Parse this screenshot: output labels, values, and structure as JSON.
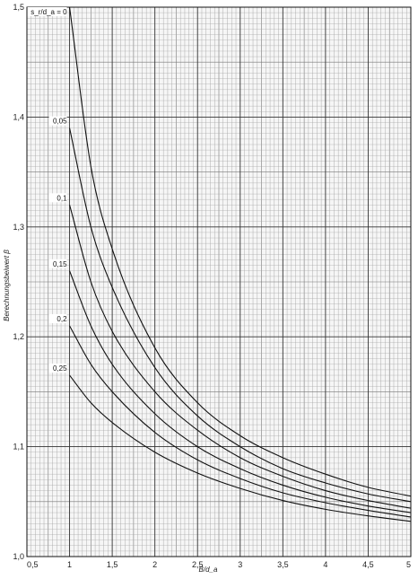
{
  "chart_data": {
    "type": "line",
    "title": "",
    "xlabel": "B/d_a",
    "ylabel": "Berechnungsbeiwert β",
    "xlim": [
      0.5,
      5
    ],
    "ylim": [
      1.0,
      1.5
    ],
    "x_ticks": [
      "0,5",
      "1",
      "1,5",
      "2",
      "2,5",
      "3",
      "3,5",
      "4",
      "4,5",
      "5"
    ],
    "y_ticks": [
      "1,0",
      "1,1",
      "1,2",
      "1,3",
      "1,4",
      "1,5"
    ],
    "grid": true,
    "legend": "none",
    "series": [
      {
        "name": "s_r/d_a = 0",
        "x": [
          1.0,
          1.25,
          1.5,
          2.0,
          2.5,
          3.0,
          3.5,
          4.0,
          4.5,
          5.0
        ],
        "y": [
          1.5,
          1.355,
          1.28,
          1.19,
          1.14,
          1.11,
          1.09,
          1.075,
          1.063,
          1.055
        ]
      },
      {
        "name": "0,05",
        "x": [
          1.0,
          1.25,
          1.5,
          2.0,
          2.5,
          3.0,
          3.5,
          4.0,
          4.5,
          5.0
        ],
        "y": [
          1.39,
          1.3,
          1.245,
          1.172,
          1.128,
          1.1,
          1.08,
          1.067,
          1.057,
          1.05
        ]
      },
      {
        "name": "0,1",
        "x": [
          1.0,
          1.25,
          1.5,
          2.0,
          2.5,
          3.0,
          3.5,
          4.0,
          4.5,
          5.0
        ],
        "y": [
          1.32,
          1.25,
          1.205,
          1.15,
          1.115,
          1.09,
          1.073,
          1.06,
          1.051,
          1.044
        ]
      },
      {
        "name": "0,15",
        "x": [
          1.0,
          1.25,
          1.5,
          2.0,
          2.5,
          3.0,
          3.5,
          4.0,
          4.5,
          5.0
        ],
        "y": [
          1.26,
          1.21,
          1.175,
          1.13,
          1.1,
          1.08,
          1.065,
          1.054,
          1.046,
          1.04
        ]
      },
      {
        "name": "0,2",
        "x": [
          1.0,
          1.25,
          1.5,
          2.0,
          2.5,
          3.0,
          3.5,
          4.0,
          4.5,
          5.0
        ],
        "y": [
          1.21,
          1.175,
          1.15,
          1.113,
          1.088,
          1.071,
          1.058,
          1.049,
          1.042,
          1.036
        ]
      },
      {
        "name": "0,25",
        "x": [
          1.0,
          1.25,
          1.5,
          2.0,
          2.5,
          3.0,
          3.5,
          4.0,
          4.5,
          5.0
        ],
        "y": [
          1.165,
          1.14,
          1.122,
          1.095,
          1.076,
          1.062,
          1.051,
          1.043,
          1.037,
          1.032
        ]
      }
    ]
  }
}
